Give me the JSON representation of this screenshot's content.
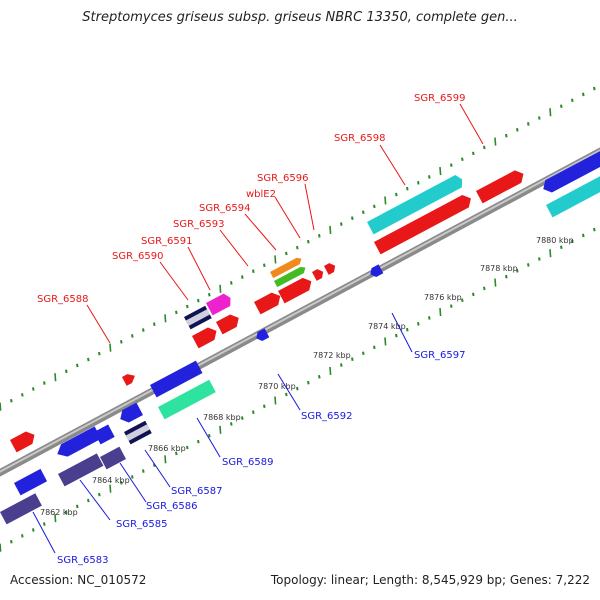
{
  "title": "Streptomyces griseus subsp. griseus NBRC 13350, complete gen...",
  "footer": {
    "accession": "Accession: NC_010572",
    "summary": "Topology: linear; Length: 8,545,929 bp; Genes: 7,222"
  },
  "colors": {
    "forward_label": "#e81818",
    "reverse_label": "#1818e0",
    "backbone": "#999999",
    "tick": "#2a8a2a"
  },
  "ticks": [
    "7862 kbp",
    "7864 kbp",
    "7866 kbp",
    "7868 kbp",
    "7870 kbp",
    "7872 kbp",
    "7874 kbp",
    "7876 kbp",
    "7878 kbp",
    "7880 kbp"
  ],
  "forward_labels": [
    "SGR_6588",
    "SGR_6590",
    "SGR_6591",
    "SGR_6593",
    "SGR_6594",
    "wblE2",
    "SGR_6596",
    "SGR_6598",
    "SGR_6599"
  ],
  "reverse_labels": [
    "SGR_6583",
    "SGR_6585",
    "SGR_6586",
    "SGR_6587",
    "SGR_6589",
    "SGR_6592",
    "SGR_6597"
  ]
}
